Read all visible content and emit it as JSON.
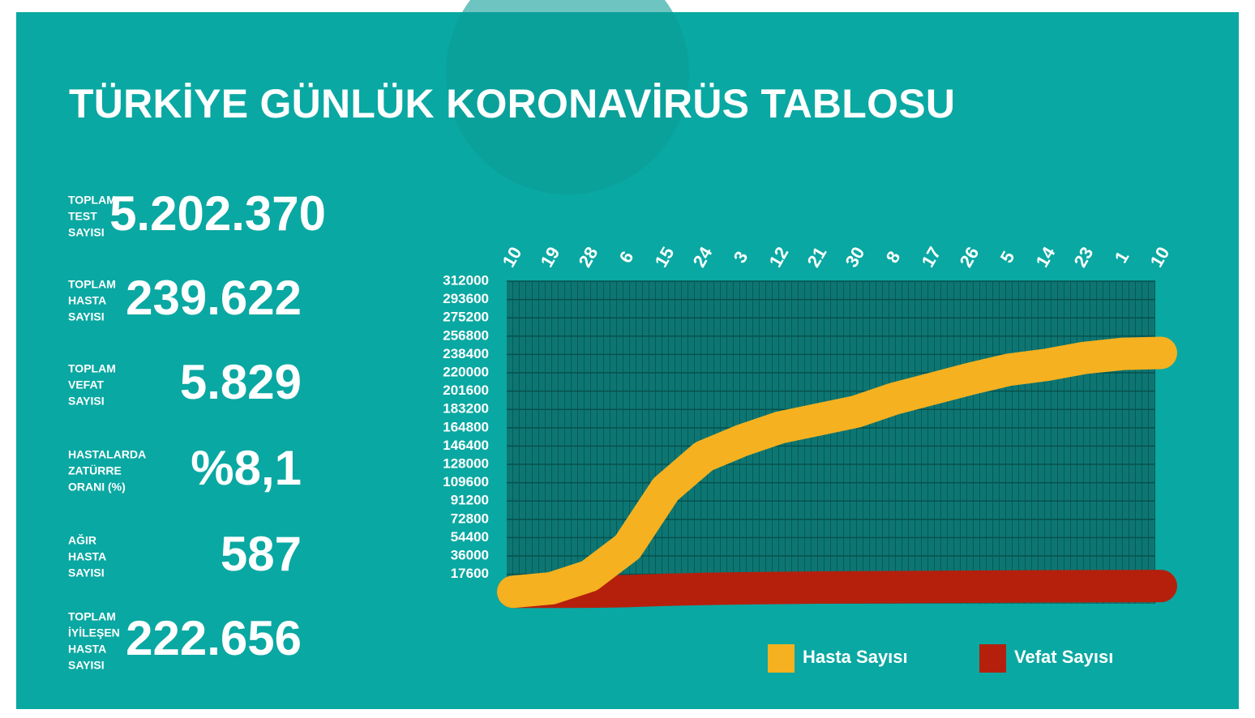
{
  "title": "TÜRKİYE GÜNLÜK KORONAVİRÜS TABLOSU",
  "stats": [
    {
      "label": [
        "TOPLAM",
        "TEST",
        "SAYISI"
      ],
      "value": "5.202.370"
    },
    {
      "label": [
        "TOPLAM",
        "HASTA",
        "SAYISI"
      ],
      "value": "239.622"
    },
    {
      "label": [
        "TOPLAM",
        "VEFAT",
        "SAYISI"
      ],
      "value": "5.829"
    },
    {
      "label": [
        "HASTALARDA",
        "ZATÜRRE",
        "ORANI (%)"
      ],
      "value": "%8,1"
    },
    {
      "label": [
        "AĞIR",
        "HASTA",
        "SAYISI"
      ],
      "value": "587"
    },
    {
      "label": [
        "TOPLAM",
        "İYİLEŞEN",
        "HASTA",
        "SAYISI"
      ],
      "value": "222.656"
    }
  ],
  "chart_data": {
    "type": "line",
    "categories": [
      "10",
      "19",
      "28",
      "6",
      "15",
      "24",
      "3",
      "12",
      "21",
      "30",
      "8",
      "17",
      "26",
      "5",
      "14",
      "23",
      "1",
      "10"
    ],
    "series": [
      {
        "name": "Hasta Sayısı",
        "color": "#f5b120",
        "values": [
          0,
          3500,
          16000,
          45000,
          103000,
          136000,
          152000,
          165000,
          173000,
          181000,
          194000,
          204000,
          214000,
          223000,
          228000,
          235000,
          239000,
          240000
        ]
      },
      {
        "name": "Vefat Sayısı",
        "color": "#b5200d",
        "values": [
          0,
          0,
          100,
          700,
          2000,
          2900,
          3500,
          3900,
          4300,
          4500,
          4700,
          4900,
          5100,
          5300,
          5500,
          5600,
          5700,
          5800
        ]
      }
    ],
    "ylim": [
      -12000,
      312000
    ],
    "yticks": [
      17600,
      36000,
      54400,
      72800,
      91200,
      109600,
      128000,
      146400,
      164800,
      183200,
      201600,
      220000,
      238400,
      256800,
      275200,
      293600,
      312000
    ],
    "grid": true
  }
}
